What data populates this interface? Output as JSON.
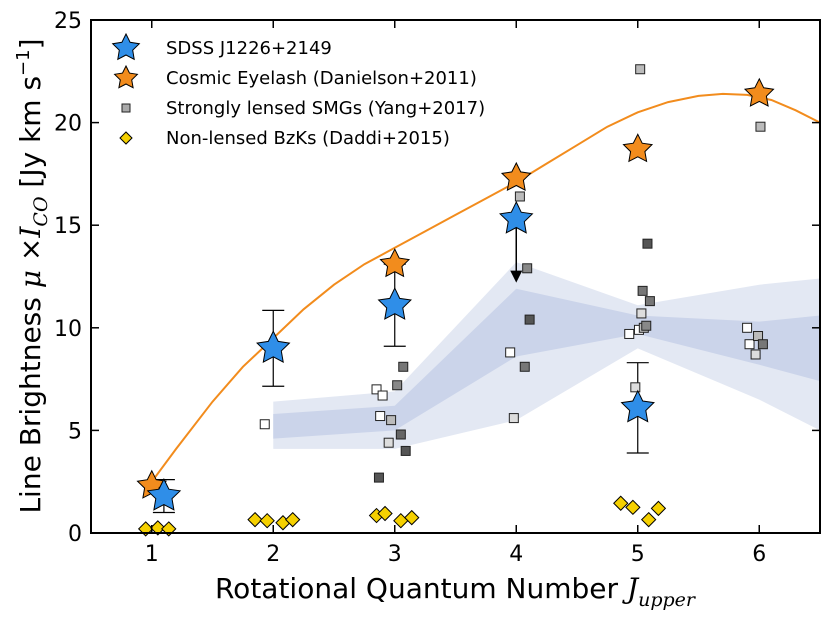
{
  "chart_data": {
    "type": "scatter",
    "title": "",
    "xlabel": "Rotational Quantum Number ",
    "xlabel_math": "J",
    "xlabel_sub": "upper",
    "ylabel": "Line Brightness ",
    "ylabel_math_mu": "μ",
    "ylabel_times": " ×",
    "ylabel_math_I": "I",
    "ylabel_sub": "CO",
    "ylabel_units": " [Jy km s",
    "ylabel_exp": "−1",
    "ylabel_close": "]",
    "xlim": [
      0.5,
      6.5
    ],
    "ylim": [
      0,
      25
    ],
    "xticks": [
      1,
      2,
      3,
      4,
      5,
      6
    ],
    "yticks": [
      0,
      5,
      10,
      15,
      20,
      25
    ],
    "legend_position": "top-left",
    "colors": {
      "sdss": "#2f8ee8",
      "eyelash": "#f28c1d",
      "bzk": "#f5d000",
      "band_outer": "#e3e8f3",
      "band_inner": "#cbd4ea",
      "curve": "#f28c1d"
    },
    "series": [
      {
        "name": "SDSS J1226+2149",
        "marker": "star",
        "points": [
          {
            "x": 1.1,
            "y": 1.8,
            "err": 0.8
          },
          {
            "x": 2.0,
            "y": 9.0,
            "err": 1.85
          },
          {
            "x": 3.0,
            "y": 11.1,
            "err": 2.0
          },
          {
            "x": 4.0,
            "y": 15.3,
            "upper_limit": true
          },
          {
            "x": 5.0,
            "y": 6.1,
            "err": 2.2
          }
        ]
      },
      {
        "name": "Cosmic Eyelash (Danielson+2011)",
        "marker": "star",
        "points": [
          {
            "x": 1.0,
            "y": 2.3
          },
          {
            "x": 3.0,
            "y": 13.1
          },
          {
            "x": 4.0,
            "y": 17.3
          },
          {
            "x": 5.0,
            "y": 18.7
          },
          {
            "x": 6.0,
            "y": 21.4
          }
        ]
      },
      {
        "name": "Strongly lensed SMGs (Yang+2017)",
        "marker": "square",
        "points": [
          {
            "x": 1.93,
            "y": 5.3,
            "shade": "#ffffff"
          },
          {
            "x": 2.85,
            "y": 7.0,
            "shade": "#ffffff"
          },
          {
            "x": 2.9,
            "y": 6.7,
            "shade": "#ffffff"
          },
          {
            "x": 2.88,
            "y": 5.7,
            "shade": "#ffffff"
          },
          {
            "x": 2.97,
            "y": 5.5,
            "shade": "#bbbbbb"
          },
          {
            "x": 3.02,
            "y": 7.2,
            "shade": "#888888"
          },
          {
            "x": 3.07,
            "y": 8.1,
            "shade": "#777777"
          },
          {
            "x": 3.05,
            "y": 4.8,
            "shade": "#666666"
          },
          {
            "x": 2.95,
            "y": 4.4,
            "shade": "#dddddd"
          },
          {
            "x": 3.09,
            "y": 4.0,
            "shade": "#555555"
          },
          {
            "x": 2.87,
            "y": 2.7,
            "shade": "#555555"
          },
          {
            "x": 3.95,
            "y": 8.8,
            "shade": "#ffffff"
          },
          {
            "x": 3.98,
            "y": 5.6,
            "shade": "#dddddd"
          },
          {
            "x": 4.03,
            "y": 16.4,
            "shade": "#bbbbbb"
          },
          {
            "x": 4.09,
            "y": 12.9,
            "shade": "#888888"
          },
          {
            "x": 4.07,
            "y": 8.1,
            "shade": "#777777"
          },
          {
            "x": 4.11,
            "y": 10.4,
            "shade": "#555555"
          },
          {
            "x": 4.93,
            "y": 9.7,
            "shade": "#ffffff"
          },
          {
            "x": 4.98,
            "y": 7.1,
            "shade": "#dddddd"
          },
          {
            "x": 5.02,
            "y": 22.6,
            "shade": "#bbbbbb"
          },
          {
            "x": 5.03,
            "y": 10.7,
            "shade": "#dddddd"
          },
          {
            "x": 5.01,
            "y": 9.9,
            "shade": "#ffffff"
          },
          {
            "x": 5.05,
            "y": 10.0,
            "shade": "#bbbbbb"
          },
          {
            "x": 5.07,
            "y": 10.1,
            "shade": "#888888"
          },
          {
            "x": 5.04,
            "y": 11.8,
            "shade": "#777777"
          },
          {
            "x": 5.1,
            "y": 11.3,
            "shade": "#777777"
          },
          {
            "x": 5.08,
            "y": 14.1,
            "shade": "#555555"
          },
          {
            "x": 5.9,
            "y": 10.0,
            "shade": "#ffffff"
          },
          {
            "x": 5.92,
            "y": 9.2,
            "shade": "#ffffff"
          },
          {
            "x": 5.97,
            "y": 8.7,
            "shade": "#dddddd"
          },
          {
            "x": 5.99,
            "y": 9.6,
            "shade": "#bbbbbb"
          },
          {
            "x": 6.03,
            "y": 9.2,
            "shade": "#777777"
          },
          {
            "x": 6.01,
            "y": 19.8,
            "shade": "#bbbbbb"
          }
        ]
      },
      {
        "name": "Non-lensed BzKs (Daddi+2015)",
        "marker": "diamond",
        "points": [
          {
            "x": 0.95,
            "y": 0.2
          },
          {
            "x": 1.05,
            "y": 0.25
          },
          {
            "x": 1.14,
            "y": 0.2
          },
          {
            "x": 1.85,
            "y": 0.65
          },
          {
            "x": 1.95,
            "y": 0.6
          },
          {
            "x": 2.08,
            "y": 0.5
          },
          {
            "x": 2.16,
            "y": 0.65
          },
          {
            "x": 2.85,
            "y": 0.85
          },
          {
            "x": 2.92,
            "y": 0.95
          },
          {
            "x": 3.05,
            "y": 0.6
          },
          {
            "x": 3.14,
            "y": 0.75
          },
          {
            "x": 4.86,
            "y": 1.45
          },
          {
            "x": 4.96,
            "y": 1.25
          },
          {
            "x": 5.09,
            "y": 0.65
          },
          {
            "x": 5.17,
            "y": 1.2
          }
        ]
      }
    ],
    "curve": [
      {
        "x": 1.0,
        "y": 2.5
      },
      {
        "x": 1.2,
        "y": 4.1
      },
      {
        "x": 1.5,
        "y": 6.4
      },
      {
        "x": 1.75,
        "y": 8.1
      },
      {
        "x": 2.0,
        "y": 9.5
      },
      {
        "x": 2.25,
        "y": 10.9
      },
      {
        "x": 2.5,
        "y": 12.1
      },
      {
        "x": 2.75,
        "y": 13.1
      },
      {
        "x": 3.0,
        "y": 13.9
      },
      {
        "x": 3.25,
        "y": 14.7
      },
      {
        "x": 3.5,
        "y": 15.5
      },
      {
        "x": 3.75,
        "y": 16.3
      },
      {
        "x": 4.0,
        "y": 17.1
      },
      {
        "x": 4.25,
        "y": 18.0
      },
      {
        "x": 4.5,
        "y": 18.9
      },
      {
        "x": 4.75,
        "y": 19.8
      },
      {
        "x": 5.0,
        "y": 20.5
      },
      {
        "x": 5.25,
        "y": 21.0
      },
      {
        "x": 5.5,
        "y": 21.3
      },
      {
        "x": 5.7,
        "y": 21.4
      },
      {
        "x": 5.9,
        "y": 21.35
      },
      {
        "x": 6.1,
        "y": 21.1
      },
      {
        "x": 6.3,
        "y": 20.6
      },
      {
        "x": 6.5,
        "y": 20.0
      }
    ],
    "band_outer": {
      "x": [
        2.0,
        3.0,
        4.0,
        5.0,
        6.0,
        6.5
      ],
      "lower": [
        4.1,
        4.1,
        5.5,
        9.0,
        6.5,
        5.0
      ],
      "upper": [
        6.4,
        6.9,
        13.2,
        11.1,
        12.1,
        12.4
      ]
    },
    "band_inner": {
      "x": [
        2.0,
        3.0,
        4.0,
        5.0,
        6.0,
        6.5
      ],
      "lower": [
        4.6,
        5.0,
        8.6,
        9.7,
        8.2,
        7.4
      ],
      "upper": [
        5.8,
        6.2,
        11.9,
        10.6,
        10.3,
        10.6
      ]
    }
  }
}
